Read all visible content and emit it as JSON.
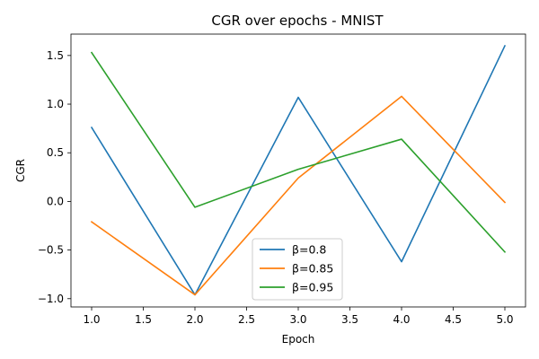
{
  "chart_data": {
    "type": "line",
    "title": "CGR over epochs - MNIST",
    "xlabel": "Epoch",
    "ylabel": "CGR",
    "x": [
      1.0,
      2.0,
      3.0,
      4.0,
      5.0
    ],
    "xlim": [
      0.8,
      5.2
    ],
    "ylim": [
      -1.085,
      1.72
    ],
    "xticks": [
      "1.0",
      "1.5",
      "2.0",
      "2.5",
      "3.0",
      "3.5",
      "4.0",
      "4.5",
      "5.0"
    ],
    "yticks": [
      "-1.0",
      "-0.5",
      "0.0",
      "0.5",
      "1.0",
      "1.5"
    ],
    "grid": false,
    "legend_position": "lower center",
    "series": [
      {
        "name": "β=0.8",
        "color": "#1f77b4",
        "values": [
          0.76,
          -0.96,
          1.07,
          -0.62,
          1.6
        ]
      },
      {
        "name": "β=0.85",
        "color": "#ff7f0e",
        "values": [
          -0.21,
          -0.96,
          0.24,
          1.08,
          -0.01
        ]
      },
      {
        "name": "β=0.95",
        "color": "#2ca02c",
        "values": [
          1.53,
          -0.06,
          0.33,
          0.64,
          -0.52
        ]
      }
    ]
  }
}
